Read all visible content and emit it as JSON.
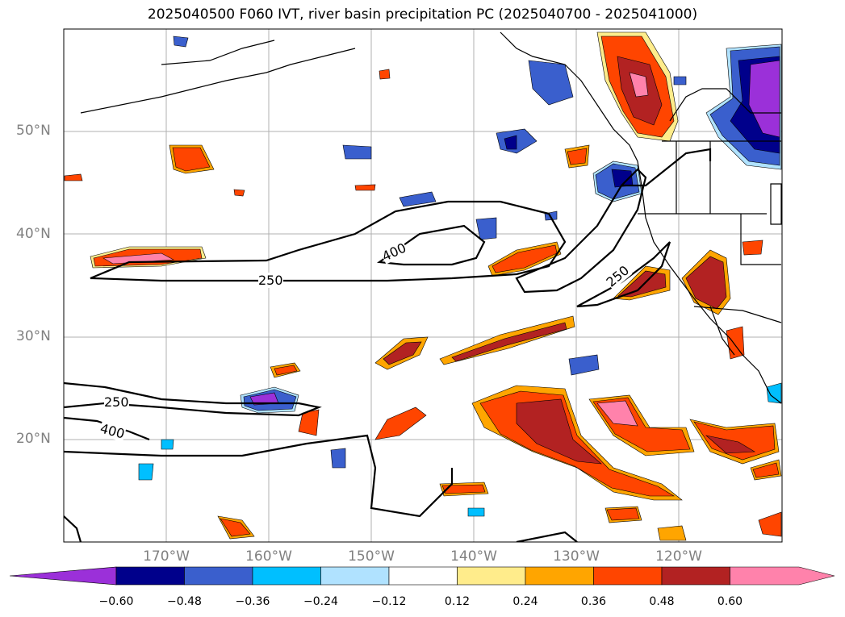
{
  "title": "2025040500 F060 IVT, river basin precipitation PC (2025040700 - 2025041000)",
  "lat_labels": [
    "50°N",
    "40°N",
    "30°N",
    "20°N"
  ],
  "lon_labels": [
    "170°W",
    "160°W",
    "150°W",
    "140°W",
    "130°W",
    "120°W"
  ],
  "contour_labels": [
    "400",
    "250",
    "250",
    "250",
    "400"
  ],
  "colorbar": {
    "ticks": [
      "−0.60",
      "−0.48",
      "−0.36",
      "−0.24",
      "−0.12",
      "0.12",
      "0.24",
      "0.36",
      "0.48",
      "0.60"
    ],
    "colors": [
      "#9b30d9",
      "#00008b",
      "#3a5fcd",
      "#00bfff",
      "#b0e2ff",
      "#ffffff",
      "#ffec8b",
      "#ffa500",
      "#ff4500",
      "#b22222",
      "#ff82ab"
    ]
  },
  "colors": {
    "grid": "#b0b0b0",
    "coast": "#000000",
    "label": "#808080"
  }
}
